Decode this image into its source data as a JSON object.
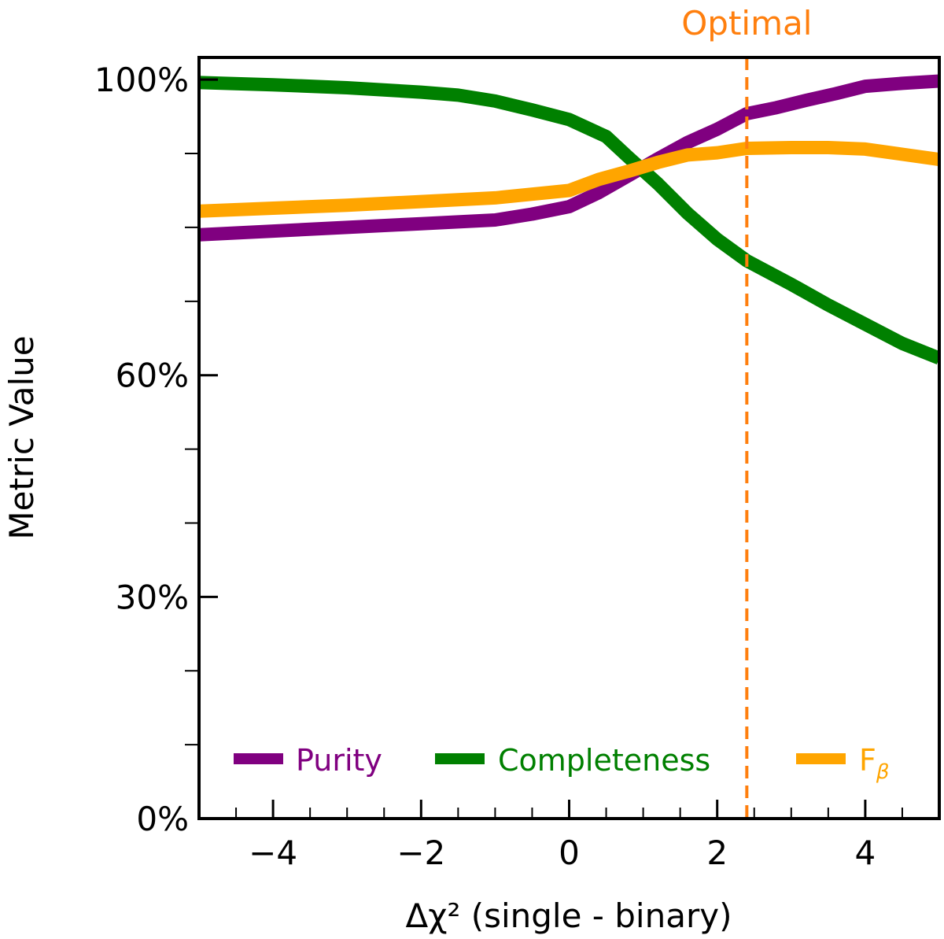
{
  "chart_data": {
    "type": "line",
    "xlabel": "Δχ² (single - binary)",
    "ylabel": "Metric Value",
    "xlim": [
      -5,
      5
    ],
    "ylim": [
      0,
      103
    ],
    "x_ticks": [
      -4,
      -2,
      0,
      2,
      4
    ],
    "x_tick_labels": [
      "−4",
      "−2",
      "0",
      "2",
      "4"
    ],
    "y_ticks": [
      0,
      30,
      60,
      100
    ],
    "y_tick_labels": [
      "0%",
      "30%",
      "60%",
      "100%"
    ],
    "y_minor_ticks": [
      10,
      20,
      40,
      50,
      70,
      80,
      90
    ],
    "grid": false,
    "legend_position": "bottom",
    "series": [
      {
        "name": "Purity",
        "color": "#800080",
        "x": [
          -5,
          -4,
          -3,
          -2,
          -1,
          -0.5,
          0,
          0.4,
          0.8,
          1.2,
          1.6,
          2.0,
          2.4,
          2.8,
          3.2,
          3.6,
          4.0,
          4.5,
          5.0
        ],
        "y": [
          79,
          79.5,
          80,
          80.5,
          81,
          81.8,
          82.8,
          84.7,
          87,
          89.3,
          91.5,
          93.3,
          95.4,
          96.2,
          97.2,
          98.1,
          99.1,
          99.5,
          99.8
        ]
      },
      {
        "name": "Completeness",
        "color": "#008000",
        "x": [
          -5,
          -4,
          -3,
          -2,
          -1.5,
          -1,
          -0.5,
          0,
          0.5,
          0.8,
          1.2,
          1.6,
          2.0,
          2.4,
          3.0,
          3.5,
          4.0,
          4.5,
          5.0
        ],
        "y": [
          99.6,
          99.3,
          98.9,
          98.3,
          97.9,
          97.1,
          95.9,
          94.6,
          92.3,
          89.5,
          85.9,
          81.9,
          78.4,
          75.5,
          72.3,
          69.5,
          66.9,
          64.3,
          62.3
        ]
      },
      {
        "name": "Fβ",
        "color": "#FFA500",
        "x": [
          -5,
          -4,
          -3,
          -2,
          -1,
          0,
          0.4,
          0.8,
          1.2,
          1.6,
          2.0,
          2.4,
          3.0,
          3.5,
          4.0,
          4.5,
          5.0
        ],
        "y": [
          82.2,
          82.6,
          83,
          83.5,
          84,
          85,
          86.5,
          87.6,
          88.8,
          89.8,
          90.1,
          90.7,
          90.8,
          90.8,
          90.6,
          89.9,
          89.2
        ]
      }
    ],
    "annotations": [
      {
        "type": "vline",
        "x": 2.4,
        "label": "Optimal",
        "color": "#FF7F0E",
        "style": "dashed"
      }
    ]
  },
  "legend": {
    "items": [
      {
        "label": "Purity",
        "color": "#800080"
      },
      {
        "label": "Completeness",
        "color": "#008000"
      },
      {
        "label_main": "F",
        "label_sub": "β",
        "color": "#FFA500"
      }
    ]
  }
}
